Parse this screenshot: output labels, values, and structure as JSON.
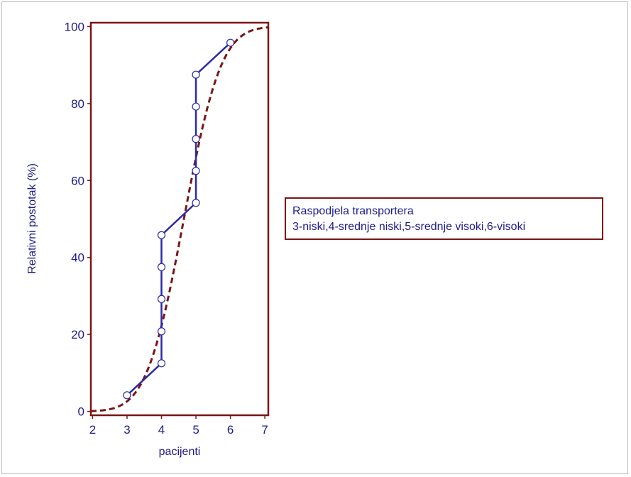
{
  "chart_data": {
    "type": "line",
    "xlabel": "pacijenti",
    "ylabel": "Relativni postotak (%)",
    "xlim": [
      1.95,
      7.1
    ],
    "ylim": [
      -1,
      101
    ],
    "x_ticks": [
      "2",
      "3",
      "4",
      "5",
      "6",
      "7"
    ],
    "y_ticks": [
      "0",
      "20",
      "40",
      "60",
      "80",
      "100"
    ],
    "series": [
      {
        "style": "solid line with circle markers",
        "color": "#2b2ba8",
        "points": [
          {
            "x": 3,
            "y": 4.2
          },
          {
            "x": 4,
            "y": 12.5
          },
          {
            "x": 4,
            "y": 20.8
          },
          {
            "x": 4,
            "y": 29.2
          },
          {
            "x": 4,
            "y": 37.5
          },
          {
            "x": 4,
            "y": 45.8
          },
          {
            "x": 5,
            "y": 54.2
          },
          {
            "x": 5,
            "y": 62.5
          },
          {
            "x": 5,
            "y": 70.8
          },
          {
            "x": 5,
            "y": 79.2
          },
          {
            "x": 5,
            "y": 87.5
          },
          {
            "x": 6,
            "y": 95.8
          }
        ]
      },
      {
        "style": "dashed curve (normal CDF fit)",
        "color": "#7b1515",
        "mean": 4.65,
        "sd": 0.85
      }
    ],
    "grid": false,
    "legend": {
      "placement": "right",
      "lines": [
        "Raspodjela transportera",
        "3-niski,4-srednje niski,5-srednje visoki,6-visoki"
      ]
    }
  }
}
